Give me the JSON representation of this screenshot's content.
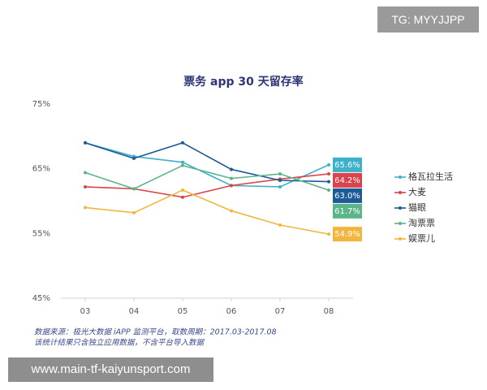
{
  "badge": "TG: MYYJJPP",
  "watermark": "www.main-tf-kaiyunsport.com",
  "chart_data": {
    "type": "line",
    "title": "票务 app 30 天留存率",
    "categories": [
      "03",
      "04",
      "05",
      "06",
      "07",
      "08"
    ],
    "ylim": [
      45,
      75
    ],
    "yticks": [
      {
        "value": 45,
        "label": "45%"
      },
      {
        "value": 55,
        "label": "55%"
      },
      {
        "value": 65,
        "label": "65%"
      },
      {
        "value": 75,
        "label": "75%"
      }
    ],
    "grid": false,
    "legend": "right",
    "series": [
      {
        "name": "格瓦拉生活",
        "color": "#3fb0c9",
        "values": [
          69,
          66.9,
          66,
          62.4,
          62.2,
          65.6
        ],
        "value_labels": [
          null,
          null,
          null,
          null,
          null,
          "65.6%"
        ]
      },
      {
        "name": "大麦",
        "color": "#d9434b",
        "values": [
          62.2,
          61.9,
          60.6,
          62.4,
          63.4,
          64.2
        ],
        "value_labels": [
          null,
          null,
          null,
          null,
          null,
          "64.2%"
        ]
      },
      {
        "name": "猫眼",
        "color": "#1c5a98",
        "values": [
          69,
          66.6,
          69,
          64.9,
          63.2,
          63.0
        ],
        "value_labels": [
          null,
          null,
          null,
          null,
          null,
          "63.0%"
        ]
      },
      {
        "name": "淘票票",
        "color": "#5cb58a",
        "values": [
          64.4,
          61.9,
          65.5,
          63.5,
          64.2,
          61.7
        ],
        "value_labels": [
          null,
          null,
          null,
          null,
          null,
          "61.7%"
        ]
      },
      {
        "name": "娱票儿",
        "color": "#f2b63c",
        "values": [
          59,
          58.2,
          61.7,
          58.5,
          56.3,
          54.9
        ],
        "value_labels": [
          null,
          null,
          null,
          null,
          null,
          "54.9%"
        ]
      }
    ],
    "notes": [
      "数据来源：极光大数据 iAPP 监测平台，取数周期：2017.03-2017.08",
      "该统计结果只含独立应用数据，不含平台导入数据"
    ]
  }
}
